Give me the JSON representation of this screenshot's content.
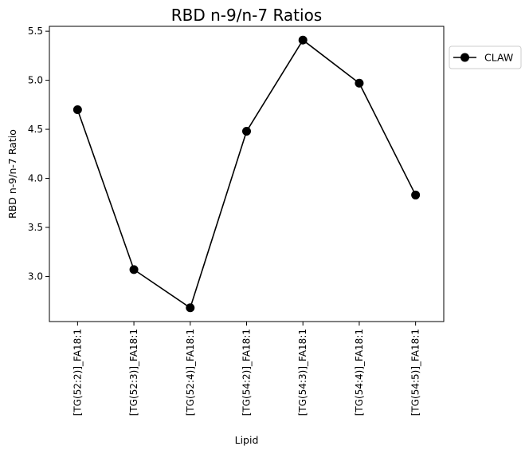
{
  "chart_data": {
    "type": "line",
    "title": "RBD n-9/n-7 Ratios",
    "xlabel": "Lipid",
    "ylabel": "RBD n-9/n-7 Ratio",
    "categories": [
      "[TG(52:2)]_FA18:1",
      "[TG(52:3)]_FA18:1",
      "[TG(52:4)]_FA18:1",
      "[TG(54:2)]_FA18:1",
      "[TG(54:3)]_FA18:1",
      "[TG(54:4)]_FA18:1",
      "[TG(54:5)]_FA18:1"
    ],
    "series": [
      {
        "name": "CLAW",
        "values": [
          4.7,
          3.07,
          2.68,
          4.48,
          5.41,
          4.97,
          3.83
        ],
        "color": "#000000",
        "marker": "circle"
      }
    ],
    "ylim": [
      2.54,
      5.55
    ],
    "yticks": [
      3.0,
      3.5,
      4.0,
      4.5,
      5.0,
      5.5
    ],
    "ytick_labels": [
      "3.0",
      "3.5",
      "4.0",
      "4.5",
      "5.0",
      "5.5"
    ],
    "grid": false,
    "legend_position": "outside-top-right"
  }
}
